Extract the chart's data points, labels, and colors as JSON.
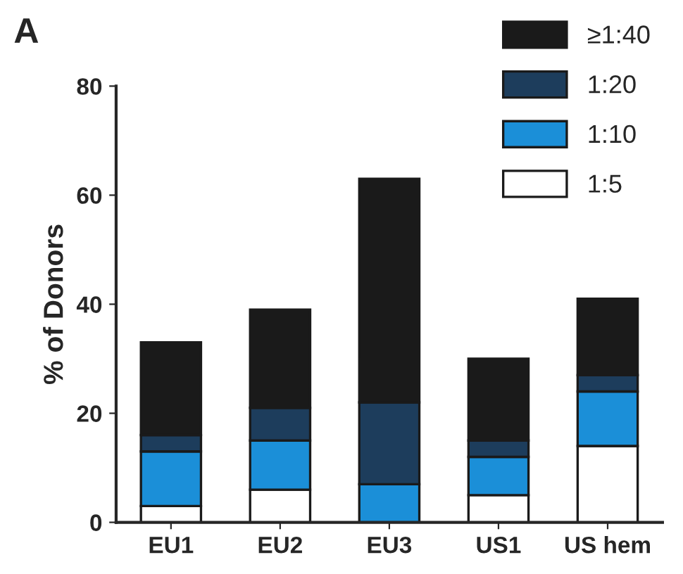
{
  "chart_data": {
    "type": "bar",
    "title": "A",
    "ylabel": "% of Donors",
    "categories": [
      "EU1",
      "EU2",
      "EU3",
      "US1",
      "US hem"
    ],
    "stacked": true,
    "series": [
      {
        "name": "1:5",
        "color": "#ffffff",
        "values": [
          3,
          6,
          0,
          5,
          14
        ]
      },
      {
        "name": "1:10",
        "color": "#1b8fd8",
        "values": [
          10,
          9,
          7,
          7,
          10
        ]
      },
      {
        "name": "1:20",
        "color": "#1d3d5c",
        "values": [
          3,
          6,
          15,
          3,
          3
        ]
      },
      {
        "name": "≥1:40",
        "color": "#1a1a1a",
        "values": [
          17,
          18,
          41,
          15,
          14
        ]
      }
    ],
    "ylim": [
      0,
      80
    ],
    "yticks": [
      0,
      20,
      40,
      60,
      80
    ],
    "grid": false,
    "legend": "top right"
  }
}
